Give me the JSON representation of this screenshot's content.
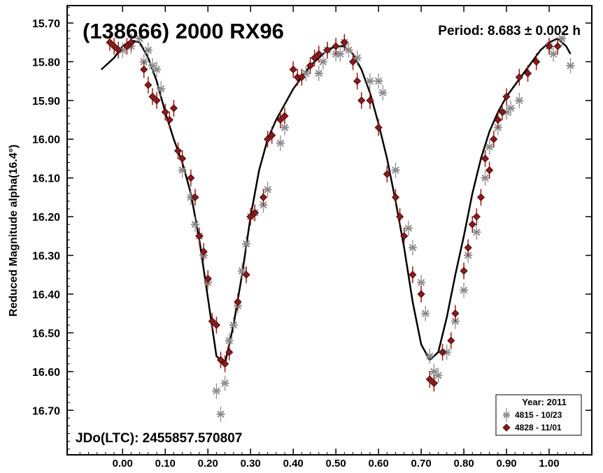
{
  "chart_data": {
    "type": "scatter",
    "title": "(138666) 2000 RX96",
    "period_label": "Period: 8.683 ± 0.002 h",
    "epoch_label": "JDo(LTC): 2455857.570807",
    "xlabel": "",
    "ylabel": "Reduced Magnitude alpha(16.4°)",
    "xlim": [
      -0.13,
      1.1
    ],
    "ylim": [
      15.655,
      16.815
    ],
    "y_inverted": true,
    "grid": false,
    "x_ticks": [
      "0.00",
      "0.10",
      "0.20",
      "0.30",
      "0.40",
      "0.50",
      "0.60",
      "0.70",
      "0.80",
      "0.90",
      "1.00"
    ],
    "y_ticks": [
      "15.70",
      "15.80",
      "15.90",
      "16.00",
      "16.10",
      "16.20",
      "16.30",
      "16.40",
      "16.50",
      "16.60",
      "16.70"
    ],
    "legend": {
      "position": "bottom-right",
      "title": "Year: 2011",
      "entries": [
        {
          "label": "4815 - 10/23",
          "marker": "asterisk",
          "color": "#8c8c8c"
        },
        {
          "label": "4828 - 11/01",
          "marker": "diamond",
          "color": "#8b1a1a"
        }
      ]
    },
    "fit_curve": {
      "color": "#000000",
      "x": [
        -0.05,
        -0.02,
        0.0,
        0.02,
        0.04,
        0.06,
        0.08,
        0.1,
        0.12,
        0.14,
        0.16,
        0.18,
        0.2,
        0.22,
        0.24,
        0.26,
        0.28,
        0.3,
        0.32,
        0.34,
        0.36,
        0.38,
        0.4,
        0.42,
        0.44,
        0.46,
        0.48,
        0.5,
        0.52,
        0.54,
        0.56,
        0.58,
        0.6,
        0.62,
        0.64,
        0.66,
        0.68,
        0.7,
        0.72,
        0.74,
        0.76,
        0.78,
        0.8,
        0.82,
        0.84,
        0.86,
        0.88,
        0.9,
        0.92,
        0.94,
        0.96,
        0.98,
        1.0,
        1.02,
        1.04,
        1.05
      ],
      "y": [
        15.82,
        15.79,
        15.76,
        15.745,
        15.75,
        15.79,
        15.85,
        15.93,
        16.0,
        16.06,
        16.14,
        16.26,
        16.41,
        16.56,
        16.58,
        16.48,
        16.35,
        16.2,
        16.08,
        16.0,
        15.95,
        15.91,
        15.87,
        15.84,
        15.81,
        15.79,
        15.77,
        15.76,
        15.76,
        15.78,
        15.82,
        15.88,
        15.96,
        16.05,
        16.16,
        16.28,
        16.42,
        16.53,
        16.57,
        16.55,
        16.46,
        16.35,
        16.25,
        16.14,
        16.05,
        15.98,
        15.93,
        15.89,
        15.86,
        15.83,
        15.8,
        15.77,
        15.75,
        15.74,
        15.76,
        15.78
      ]
    },
    "series": [
      {
        "name": "4815 - 10/23",
        "marker": "asterisk",
        "color": "#8c8c8c",
        "x": [
          0.0,
          0.02,
          0.04,
          0.05,
          0.06,
          0.07,
          0.08,
          0.09,
          0.14,
          0.16,
          0.17,
          0.18,
          0.19,
          0.2,
          0.22,
          0.23,
          0.24,
          0.25,
          0.26,
          0.27,
          0.28,
          0.29,
          0.3,
          0.31,
          0.33,
          0.34,
          0.37,
          0.38,
          0.43,
          0.46,
          0.47,
          0.48,
          0.5,
          0.51,
          0.52,
          0.53,
          0.55,
          0.58,
          0.6,
          0.61,
          0.64,
          0.67,
          0.68,
          0.7,
          0.71,
          0.72,
          0.73,
          0.74,
          0.76,
          0.78,
          0.8,
          0.81,
          0.83,
          0.85,
          0.86,
          0.88,
          0.9,
          0.91,
          0.93,
          1.0,
          1.01,
          1.03,
          1.05
        ],
        "y": [
          15.77,
          15.76,
          15.74,
          15.8,
          15.77,
          15.81,
          15.82,
          15.87,
          16.08,
          16.15,
          16.22,
          16.25,
          16.3,
          16.37,
          16.65,
          16.71,
          16.63,
          16.52,
          16.48,
          16.43,
          16.34,
          16.27,
          16.2,
          16.19,
          16.17,
          16.13,
          16.01,
          15.97,
          15.83,
          15.83,
          15.8,
          15.77,
          15.78,
          15.78,
          15.75,
          15.77,
          15.79,
          15.85,
          15.85,
          15.88,
          16.08,
          16.23,
          16.28,
          16.37,
          16.45,
          16.56,
          16.6,
          16.61,
          16.55,
          16.47,
          16.39,
          16.3,
          16.24,
          16.1,
          16.02,
          15.97,
          15.93,
          15.92,
          15.9,
          15.76,
          15.78,
          15.74,
          15.81
        ]
      },
      {
        "name": "4828 - 11/01",
        "marker": "diamond",
        "color": "#8b1a1a",
        "x": [
          -0.03,
          -0.02,
          -0.01,
          0.01,
          0.02,
          0.05,
          0.06,
          0.07,
          0.08,
          0.1,
          0.11,
          0.12,
          0.13,
          0.14,
          0.16,
          0.17,
          0.18,
          0.19,
          0.2,
          0.21,
          0.22,
          0.23,
          0.24,
          0.25,
          0.27,
          0.29,
          0.3,
          0.31,
          0.33,
          0.34,
          0.35,
          0.37,
          0.38,
          0.4,
          0.41,
          0.42,
          0.44,
          0.45,
          0.46,
          0.48,
          0.5,
          0.52,
          0.54,
          0.55,
          0.56,
          0.58,
          0.6,
          0.62,
          0.64,
          0.65,
          0.66,
          0.68,
          0.7,
          0.72,
          0.73,
          0.75,
          0.77,
          0.78,
          0.8,
          0.81,
          0.82,
          0.83,
          0.84,
          0.85,
          0.86,
          0.87,
          0.88,
          0.89,
          0.9,
          0.93,
          0.95,
          0.97,
          1.0,
          1.02
        ],
        "y": [
          15.75,
          15.76,
          15.77,
          15.76,
          15.75,
          15.82,
          15.86,
          15.89,
          15.9,
          15.93,
          15.95,
          15.92,
          16.03,
          16.05,
          16.1,
          16.15,
          16.25,
          16.29,
          16.36,
          16.47,
          16.48,
          16.57,
          16.58,
          16.55,
          16.42,
          16.35,
          16.2,
          16.19,
          16.15,
          16.0,
          15.99,
          15.95,
          15.94,
          15.82,
          15.84,
          15.84,
          15.81,
          15.79,
          15.78,
          15.77,
          15.76,
          15.75,
          15.8,
          15.85,
          15.9,
          15.9,
          15.97,
          16.09,
          16.15,
          16.2,
          16.25,
          16.35,
          16.4,
          16.62,
          16.63,
          16.55,
          16.52,
          16.45,
          16.34,
          16.28,
          16.22,
          16.2,
          16.15,
          16.05,
          16.08,
          16.0,
          15.95,
          15.93,
          15.89,
          15.84,
          15.83,
          15.8,
          15.76,
          15.76
        ]
      }
    ]
  }
}
